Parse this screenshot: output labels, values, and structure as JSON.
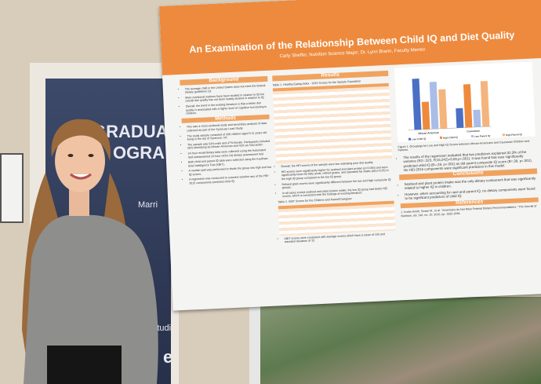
{
  "banner": {
    "line1": "GRADUA",
    "line2": "OGRA",
    "line3": "Marri",
    "line4": "a Studies",
    "line5": "edu"
  },
  "poster": {
    "title": "An Examination of the Relationship Between Child IQ and Diet Quality",
    "authors": "Carly Sheffer, Nutrition Science Major; Dr. Lynn Brann, Faculty Mentor",
    "left": [
      {
        "heading": "Background",
        "bullets": [
          "The average child in the United States does not meet the federal dietary guidelines (1).",
          "More nutritional markers have been studied in relation to IQ but overall diet quality has not been readily studied in relation to IQ.",
          "Overall, the trend in the existing literature is that a better diet quality is associated with a higher level of cognitive functioning in children."
        ]
      },
      {
        "heading": "Methods",
        "bullets": [
          "This was a cross-sectional study and secondary analysis of data collected as part of the Syracuse Lead Study.",
          "The study sample consisted of 208 children aged 9-11 years old living in the city of Syracuse, NY.",
          "The sample was 53% male and 47% female. Participants included 58% identifying as African-American and 42% as Caucasian.",
          "24-hour recall dietary data were collected using the Automated Self-Administered 24-hour (ASA-24) dietary assessment tool.",
          "Both child and parent IQ data were collected using the Kaufman Brief Intelligence Test (KBIT).",
          "A median split was performed to divide the group into high and low IQ scores.",
          "A regression was conducted to examine whether any of the HEI-2015 components predicted child IQ."
        ]
      }
    ],
    "results": {
      "heading": "Results",
      "table1": "Table 1. Healthy Eating Index - 2015 Scores for the Sample Population",
      "bullets": [
        "Overall, the HEI scores of the sample were low indicating poor diet quality.",
        "HEI scores were significantly higher for seafood and plant protein (p=0.000) and were significantly lower for fatty acids, refined grains, and saturated fat intake (all p<0.05) in the high IQ group compared to the low IQ group.",
        "Refined grain scores were significantly different between the low and high composite IQ groups.",
        "In all cases except seafood and plant protein intake, the low IQ group had better HEI scores, which is consistent with the findings of existing literature."
      ],
      "table2": "Table 2. KBIT Scores for the Children and Parent/Caregiver",
      "after": "KBIT scores were consistent with average scores which have a mean of 100 and standard deviation of 15."
    },
    "figure": {
      "groups": [
        "African-American",
        "Caucasian"
      ],
      "legend": [
        "Low Child IQ",
        "High Child IQ",
        "Low Parent IQ",
        "High Parent IQ"
      ],
      "caption": "Figure 1. Groupings for Low and High IQ Scores between African-Americans and Caucasian Children and Parents."
    },
    "regression": "The results of the regression indicated that two predictors explained 32.3% of the variance (R2=.323, F(16,242)=8.69,p<.001). It was found that race significantly predicted child IQ (B=.28, p<.001) as did parent composite IQ score (B=.39, p<.001). No HEI-2015 components were significant predictors in this model.",
    "conclusions": {
      "heading": "Conclusions",
      "bullets": [
        "Seafood and plant protein intake was the only dietary component that was significantly related to higher IQ in children.",
        "However, when accounting for race and parent IQ, no dietary components were found to be significant predictors of child IQ."
      ]
    },
    "references": {
      "heading": "References",
      "text": "1. Krebs-Smith, Susan M., et al. \"Americans do Not Meet Federal Dietary Recommendations.\" The Journal of Nutrition, vol. 140, no. 10, 2010, pp. 1832-1838."
    }
  }
}
